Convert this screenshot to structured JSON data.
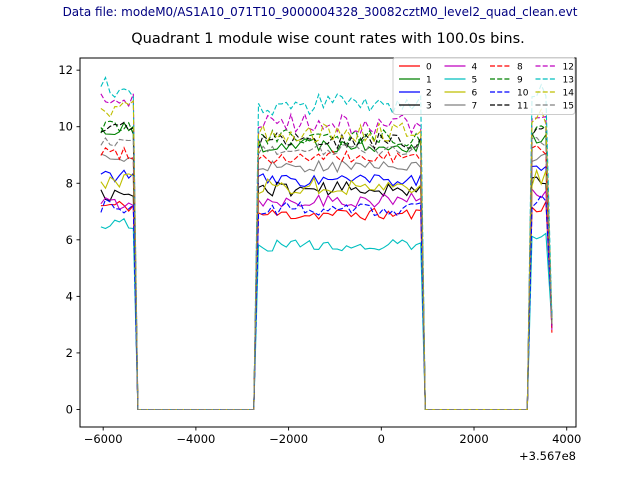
{
  "header": {
    "datafile": "Data file: modeM0/AS1A10_071T10_9000004328_30082cztM0_level2_quad_clean.evt",
    "datafile_color": "#000080"
  },
  "chart_data": {
    "type": "line",
    "title": "Quadrant 1 module wise count rates with 100.0s bins.",
    "xlabel": "",
    "ylabel": "",
    "x_offset_label": "+3.567e8",
    "xlim": [
      -6500,
      4200
    ],
    "ylim": [
      -0.62,
      12.43
    ],
    "xticks": [
      -6000,
      -4000,
      -2000,
      0,
      2000,
      4000
    ],
    "xtick_labels": [
      "−6000",
      "−4000",
      "−2000",
      "0",
      "2000",
      "4000"
    ],
    "yticks": [
      0,
      2,
      4,
      6,
      8,
      10,
      12
    ],
    "ytick_labels": [
      "0",
      "2",
      "4",
      "6",
      "8",
      "10",
      "12"
    ],
    "grid": false,
    "bin_seconds": 100,
    "legend_location": "upper right",
    "legend_columns": 4,
    "segments": [
      {
        "x0": -6050,
        "x1": -5350,
        "kind": "on",
        "lk": "l1"
      },
      {
        "x0": -5250,
        "x1": -2750,
        "kind": "zero"
      },
      {
        "x0": -2650,
        "x1": 850,
        "kind": "on",
        "lk": "l2"
      },
      {
        "x0": 950,
        "x1": 3150,
        "kind": "zero"
      },
      {
        "x0": 3250,
        "x1": 3580,
        "kind": "on",
        "lk": "l3"
      }
    ],
    "tail": {
      "x": 3680,
      "base": 2.7,
      "spread": 0.7
    },
    "series": [
      {
        "name": "0",
        "color": "#ff0000",
        "dash": false,
        "levels": {
          "l1": 7.2,
          "l2": 6.9,
          "l3": 7.2
        },
        "amp": 0.22,
        "seed": 11
      },
      {
        "name": "1",
        "color": "#008000",
        "dash": false,
        "levels": {
          "l1": 9.9,
          "l2": 9.4,
          "l3": 9.7
        },
        "amp": 0.3,
        "seed": 22
      },
      {
        "name": "2",
        "color": "#0000ff",
        "dash": false,
        "levels": {
          "l1": 8.3,
          "l2": 8.1,
          "l3": 8.4
        },
        "amp": 0.25,
        "seed": 33
      },
      {
        "name": "3",
        "color": "#000000",
        "dash": false,
        "levels": {
          "l1": 7.6,
          "l2": 7.8,
          "l3": 8.0
        },
        "amp": 0.25,
        "seed": 44
      },
      {
        "name": "4",
        "color": "#bf00bf",
        "dash": false,
        "levels": {
          "l1": 7.3,
          "l2": 7.4,
          "l3": 7.6
        },
        "amp": 0.25,
        "seed": 55
      },
      {
        "name": "5",
        "color": "#00bfbf",
        "dash": false,
        "levels": {
          "l1": 6.6,
          "l2": 5.8,
          "l3": 6.1
        },
        "amp": 0.2,
        "seed": 66
      },
      {
        "name": "6",
        "color": "#bfbf00",
        "dash": false,
        "levels": {
          "l1": 8.1,
          "l2": 7.9,
          "l3": 8.2
        },
        "amp": 0.3,
        "seed": 77
      },
      {
        "name": "7",
        "color": "#808080",
        "dash": false,
        "levels": {
          "l1": 8.9,
          "l2": 8.6,
          "l3": 8.9
        },
        "amp": 0.2,
        "seed": 88
      },
      {
        "name": "8",
        "color": "#ff0000",
        "dash": true,
        "levels": {
          "l1": 9.1,
          "l2": 8.9,
          "l3": 9.2
        },
        "amp": 0.25,
        "seed": 99
      },
      {
        "name": "9",
        "color": "#008000",
        "dash": true,
        "levels": {
          "l1": 10.0,
          "l2": 9.6,
          "l3": 9.9
        },
        "amp": 0.3,
        "seed": 110
      },
      {
        "name": "10",
        "color": "#0000ff",
        "dash": true,
        "levels": {
          "l1": 7.2,
          "l2": 7.1,
          "l3": 7.4
        },
        "amp": 0.25,
        "seed": 121
      },
      {
        "name": "11",
        "color": "#000000",
        "dash": true,
        "levels": {
          "l1": 9.9,
          "l2": 9.5,
          "l3": 9.8
        },
        "amp": 0.3,
        "seed": 132
      },
      {
        "name": "12",
        "color": "#bf00bf",
        "dash": true,
        "levels": {
          "l1": 10.9,
          "l2": 10.1,
          "l3": 10.5
        },
        "amp": 0.35,
        "seed": 143
      },
      {
        "name": "13",
        "color": "#00bfbf",
        "dash": true,
        "levels": {
          "l1": 11.4,
          "l2": 10.8,
          "l3": 11.2
        },
        "amp": 0.4,
        "seed": 154
      },
      {
        "name": "14",
        "color": "#bfbf00",
        "dash": true,
        "levels": {
          "l1": 10.6,
          "l2": 9.8,
          "l3": 10.3
        },
        "amp": 0.35,
        "seed": 165
      },
      {
        "name": "15",
        "color": "#808080",
        "dash": true,
        "levels": {
          "l1": 9.5,
          "l2": 9.2,
          "l3": 9.5
        },
        "amp": 0.2,
        "seed": 176
      }
    ]
  }
}
